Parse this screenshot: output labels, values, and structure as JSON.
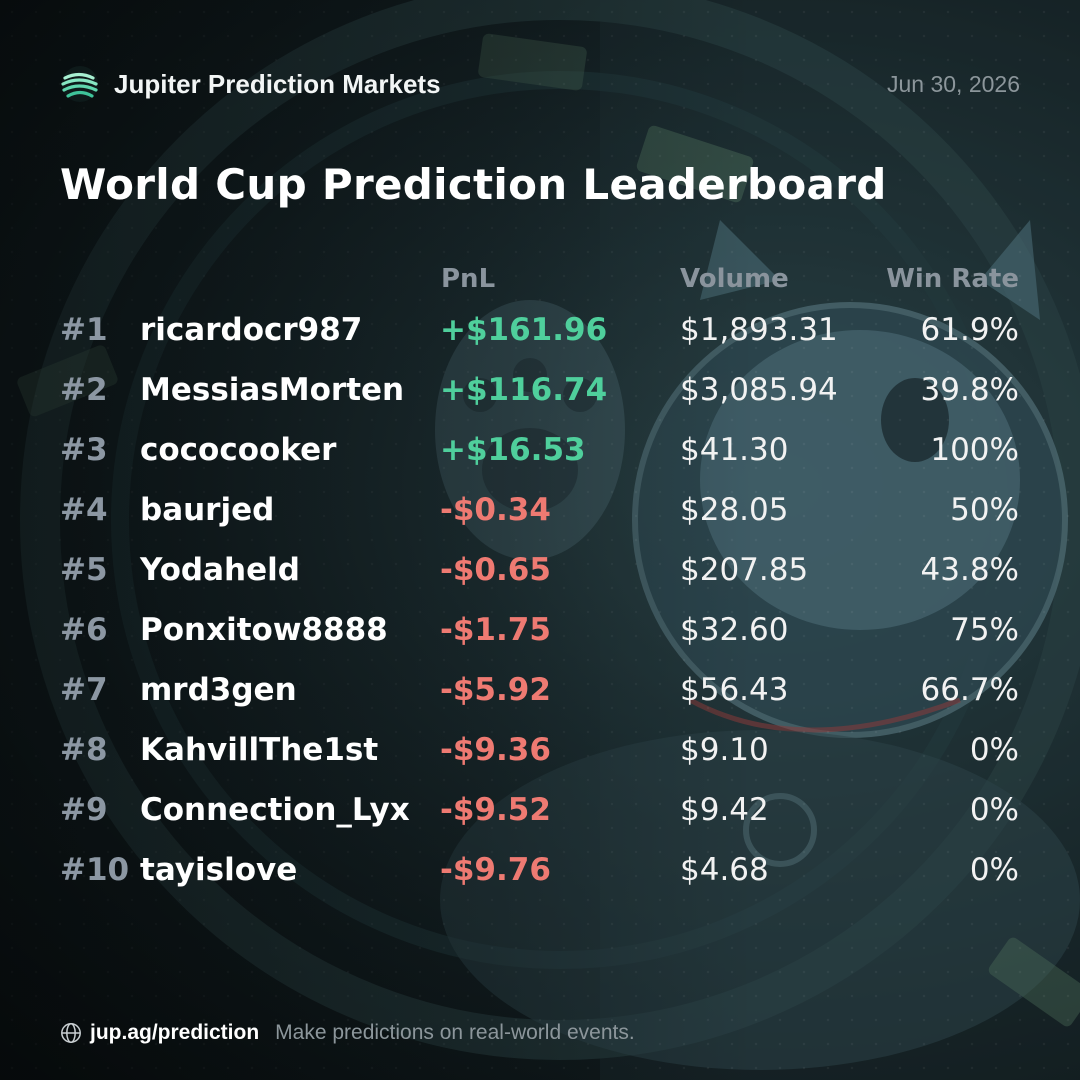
{
  "brand": {
    "name": "Jupiter Prediction Markets",
    "logo_icon": "jupiter-logo-icon",
    "accent": "#4fcf9c"
  },
  "date": "Jun 30, 2026",
  "title": "World Cup Prediction Leaderboard",
  "columns": {
    "pnl": "PnL",
    "volume": "Volume",
    "win_rate": "Win Rate"
  },
  "rows": [
    {
      "rank": "#1",
      "user": "ricardocr987",
      "pnl": "+$161.96",
      "volume": "$1,893.31",
      "win_rate": "61.9%"
    },
    {
      "rank": "#2",
      "user": "MessiasMorten",
      "pnl": "+$116.74",
      "volume": "$3,085.94",
      "win_rate": "39.8%"
    },
    {
      "rank": "#3",
      "user": "cococooker",
      "pnl": "+$16.53",
      "volume": "$41.30",
      "win_rate": "100%"
    },
    {
      "rank": "#4",
      "user": "baurjed",
      "pnl": "-$0.34",
      "volume": "$28.05",
      "win_rate": "50%"
    },
    {
      "rank": "#5",
      "user": "Yodaheld",
      "pnl": "-$0.65",
      "volume": "$207.85",
      "win_rate": "43.8%"
    },
    {
      "rank": "#6",
      "user": "Ponxitow8888",
      "pnl": "-$1.75",
      "volume": "$32.60",
      "win_rate": "75%"
    },
    {
      "rank": "#7",
      "user": "mrd3gen",
      "pnl": "-$5.92",
      "volume": "$56.43",
      "win_rate": "66.7%"
    },
    {
      "rank": "#8",
      "user": "KahvillThe1st",
      "pnl": "-$9.36",
      "volume": "$9.10",
      "win_rate": "0%"
    },
    {
      "rank": "#9",
      "user": "Connection_Lyx",
      "pnl": "-$9.52",
      "volume": "$9.42",
      "win_rate": "0%"
    },
    {
      "rank": "#10",
      "user": "tayislove",
      "pnl": "-$9.76",
      "volume": "$4.68",
      "win_rate": "0%"
    }
  ],
  "colors": {
    "positive": "#4fcf9c",
    "negative": "#ee7a72",
    "muted": "#8c969b"
  },
  "footer": {
    "icon": "globe-icon",
    "url": "jup.ag/prediction",
    "tagline": "Make predictions on real-world events."
  }
}
